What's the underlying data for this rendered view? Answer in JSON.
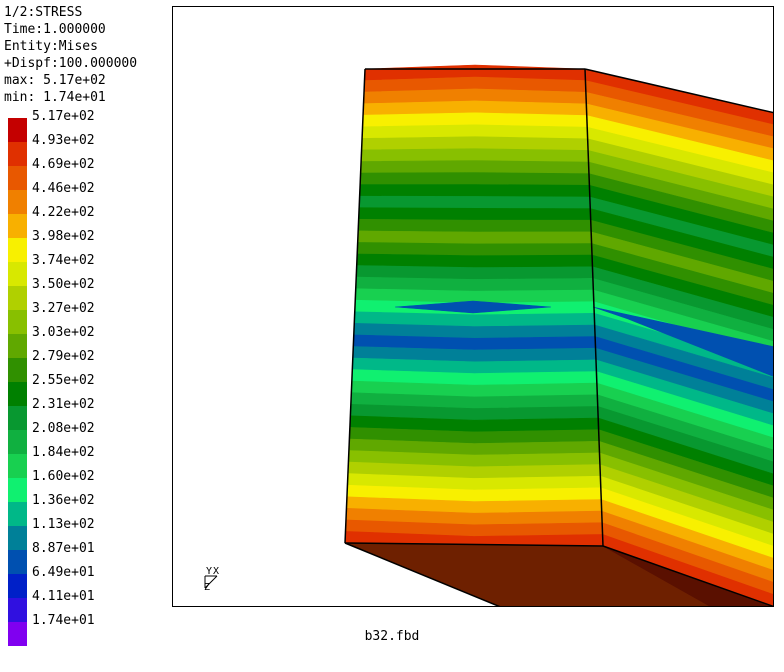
{
  "info": {
    "lines": [
      "1/2:STRESS",
      "Time:1.000000",
      "Entity:Mises",
      "+Dispf:100.000000",
      "max: 5.17e+02",
      "min: 1.74e+01"
    ]
  },
  "legend": {
    "labels": [
      "5.17e+02",
      "4.93e+02",
      "4.69e+02",
      "4.46e+02",
      "4.22e+02",
      "3.98e+02",
      "3.74e+02",
      "3.50e+02",
      "3.27e+02",
      "3.03e+02",
      "2.79e+02",
      "2.55e+02",
      "2.31e+02",
      "2.08e+02",
      "1.84e+02",
      "1.60e+02",
      "1.36e+02",
      "1.13e+02",
      "8.87e+01",
      "6.49e+01",
      "4.11e+01",
      "1.74e+01"
    ],
    "colors": [
      "#c40000",
      "#e03000",
      "#e85800",
      "#f08000",
      "#f8b000",
      "#f8f000",
      "#d8e800",
      "#b0d000",
      "#88c000",
      "#60a800",
      "#309000",
      "#008000",
      "#089830",
      "#10b040",
      "#18d050",
      "#10f070",
      "#00b888",
      "#008098",
      "#0050b0",
      "#0020c8",
      "#3010e0",
      "#8000f0"
    ]
  },
  "axes": {
    "x": "X",
    "y": "Y",
    "z": "Z"
  },
  "footer": {
    "filename": "b32.fbd"
  },
  "colors": {
    "base_face": "#6e2000",
    "base_shadow": "#5a1000",
    "edge": "#000000"
  },
  "icons": {
    "axis_triad": "axis-triad-icon"
  }
}
